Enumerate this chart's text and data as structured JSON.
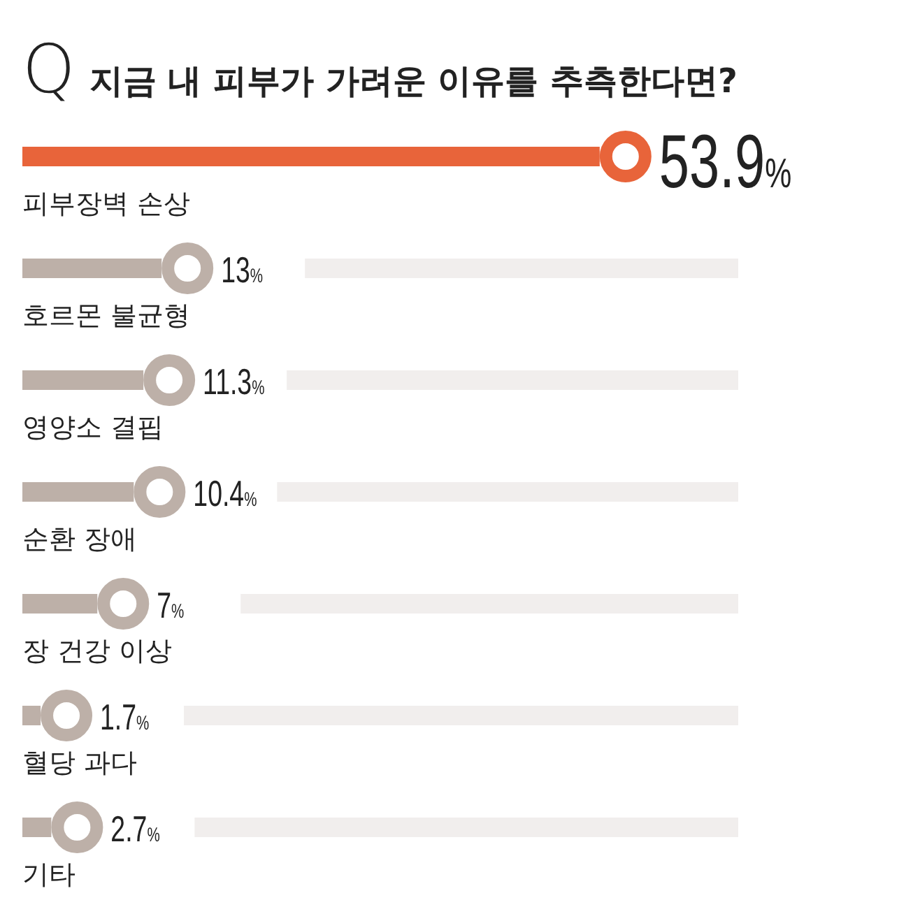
{
  "chart_data": {
    "type": "bar",
    "orientation": "horizontal",
    "title": "Q 지금 내 피부가 가려운 이유를 추측한다면?",
    "categories": [
      "피부장벽 손상",
      "호르몬 불균형",
      "영양소 결핍",
      "순환 장애",
      "장 건강 이상",
      "혈당 과다",
      "기타"
    ],
    "values": [
      53.9,
      13,
      11.3,
      10.4,
      7,
      1.7,
      2.7
    ],
    "value_labels": [
      "53.9%",
      "13%",
      "11.3%",
      "10.4%",
      "7%",
      "1.7%",
      "2.7%"
    ],
    "colors": [
      "#e8643a",
      "#bdb0a8",
      "#bdb0a8",
      "#bdb0a8",
      "#bdb0a8",
      "#bdb0a8",
      "#bdb0a8"
    ]
  }
}
